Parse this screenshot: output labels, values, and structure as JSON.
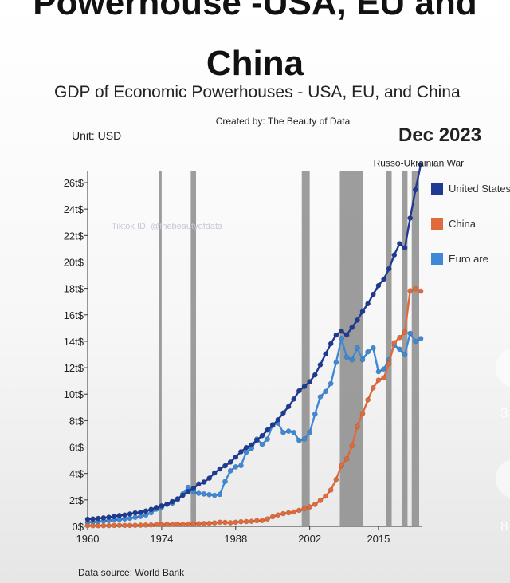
{
  "header": {
    "title_line1": "Powerhouse -USA, EU and",
    "title_line2": "China",
    "chart_title": "GDP of Economic Powerhouses - USA, EU, and China",
    "created_by": "Created by: The Beauty of Data",
    "unit": "Unit: USD",
    "date": "Dec 2023",
    "watermark": "Tiktok ID: @thebeautyofdata",
    "source": "Data source: World Bank"
  },
  "side_overlay": {
    "count_1": "3",
    "count_2": "8"
  },
  "colors": {
    "us": "#1f3a93",
    "china": "#e06a3a",
    "eu": "#3f88d6",
    "band": "#8c8c8c"
  },
  "chart_data": {
    "type": "line",
    "title": "GDP of Economic Powerhouses - USA, EU, and China",
    "xlabel": "",
    "ylabel": "",
    "xlim": [
      1960,
      2023
    ],
    "ylim": [
      0,
      27
    ],
    "x_ticks": [
      1960,
      1974,
      1988,
      2002,
      2015
    ],
    "y_ticks": [
      0,
      2,
      4,
      6,
      8,
      10,
      12,
      14,
      16,
      18,
      20,
      22,
      24,
      26
    ],
    "y_tick_labels": [
      "0$",
      "2t$",
      "4t$",
      "6t$",
      "8t$",
      "10t$",
      "12t$",
      "14t$",
      "16t$",
      "18t$",
      "20t$",
      "22t$",
      "24t$",
      "26t$"
    ],
    "grid": false,
    "legend": "right",
    "shaded_periods": [
      [
        1973.5,
        1974.0
      ],
      [
        1979.5,
        1980.5
      ],
      [
        2000.5,
        2002.0
      ],
      [
        2007.7,
        2012.0
      ],
      [
        2016.5,
        2017.5
      ],
      [
        2019.5,
        2020.5
      ],
      [
        2021.3,
        2022.7
      ]
    ],
    "annotations": [
      {
        "text": "Russo-Ukrainian War",
        "x": 2022,
        "y": 27.3
      }
    ],
    "x": [
      1960,
      1961,
      1962,
      1963,
      1964,
      1965,
      1966,
      1967,
      1968,
      1969,
      1970,
      1971,
      1972,
      1973,
      1974,
      1975,
      1976,
      1977,
      1978,
      1979,
      1980,
      1981,
      1982,
      1983,
      1984,
      1985,
      1986,
      1987,
      1988,
      1989,
      1990,
      1991,
      1992,
      1993,
      1994,
      1995,
      1996,
      1997,
      1998,
      1999,
      2000,
      2001,
      2002,
      2003,
      2004,
      2005,
      2006,
      2007,
      2008,
      2009,
      2010,
      2011,
      2012,
      2013,
      2014,
      2015,
      2016,
      2017,
      2018,
      2019,
      2020,
      2021,
      2022,
      2023
    ],
    "series": [
      {
        "name": "United States",
        "color": "#1f3a93",
        "values": [
          0.54,
          0.56,
          0.6,
          0.64,
          0.69,
          0.74,
          0.82,
          0.86,
          0.94,
          1.02,
          1.07,
          1.16,
          1.28,
          1.43,
          1.55,
          1.68,
          1.87,
          2.08,
          2.35,
          2.63,
          2.86,
          3.21,
          3.35,
          3.64,
          4.04,
          4.34,
          4.58,
          4.86,
          5.24,
          5.64,
          5.96,
          6.16,
          6.52,
          6.86,
          7.29,
          7.64,
          8.07,
          8.58,
          9.06,
          9.63,
          10.25,
          10.58,
          10.94,
          11.46,
          12.22,
          13.04,
          13.82,
          14.47,
          14.77,
          14.48,
          15.05,
          15.6,
          16.25,
          16.84,
          17.55,
          18.21,
          18.7,
          19.48,
          20.53,
          21.38,
          21.06,
          23.32,
          25.46,
          27.36
        ]
      },
      {
        "name": "China",
        "color": "#e06a3a",
        "values": [
          0.06,
          0.05,
          0.05,
          0.05,
          0.06,
          0.07,
          0.08,
          0.07,
          0.07,
          0.08,
          0.09,
          0.1,
          0.11,
          0.14,
          0.14,
          0.16,
          0.15,
          0.17,
          0.15,
          0.18,
          0.19,
          0.2,
          0.21,
          0.23,
          0.26,
          0.31,
          0.3,
          0.27,
          0.31,
          0.35,
          0.36,
          0.38,
          0.43,
          0.44,
          0.56,
          0.73,
          0.86,
          0.96,
          1.03,
          1.09,
          1.21,
          1.34,
          1.47,
          1.66,
          1.96,
          2.29,
          2.75,
          3.55,
          4.59,
          5.1,
          6.09,
          7.55,
          8.53,
          9.57,
          10.48,
          11.06,
          11.23,
          12.31,
          13.89,
          14.28,
          14.69,
          17.82,
          17.96,
          17.79
        ]
      },
      {
        "name": "Euro are",
        "color": "#3f88d6",
        "values": [
          0.3,
          0.33,
          0.36,
          0.4,
          0.44,
          0.48,
          0.52,
          0.56,
          0.61,
          0.68,
          0.75,
          0.86,
          1.03,
          1.3,
          1.45,
          1.66,
          1.75,
          2.0,
          2.45,
          2.95,
          2.6,
          2.5,
          2.45,
          2.4,
          2.35,
          2.42,
          3.4,
          4.2,
          4.5,
          4.6,
          5.6,
          5.9,
          6.6,
          6.2,
          6.6,
          7.7,
          7.8,
          7.1,
          7.2,
          7.1,
          6.5,
          6.6,
          7.1,
          8.5,
          9.8,
          10.2,
          10.8,
          12.4,
          14.2,
          12.8,
          12.6,
          13.5,
          12.6,
          13.2,
          13.5,
          11.7,
          11.9,
          12.6,
          13.7,
          13.4,
          13.0,
          14.6,
          14.0,
          14.2
        ]
      }
    ]
  }
}
